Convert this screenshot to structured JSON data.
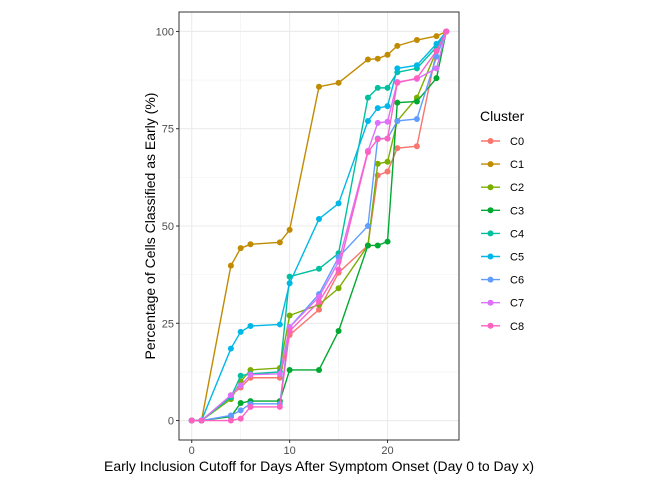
{
  "chart_data": {
    "type": "line",
    "title": "",
    "xlabel": "Early Inclusion Cutoff for Days After Symptom Onset (Day 0 to Day x)",
    "ylabel": "Percentage of Cells Classified as Early (%)",
    "xlim": [
      -1.3,
      27.3
    ],
    "ylim": [
      -5,
      105
    ],
    "xticks": [
      0,
      10,
      20
    ],
    "yticks": [
      0,
      25,
      50,
      75,
      100
    ],
    "grid": true,
    "legend": {
      "title": "Cluster",
      "position": "right"
    },
    "series": [
      {
        "name": "C0",
        "color": "#F8766D",
        "points": [
          [
            0,
            0
          ],
          [
            1,
            0
          ],
          [
            4,
            6.5
          ],
          [
            5,
            8.5
          ],
          [
            6,
            11
          ],
          [
            9,
            11
          ],
          [
            10,
            22
          ],
          [
            13,
            28.5
          ],
          [
            15,
            38
          ],
          [
            18,
            45
          ],
          [
            19,
            63
          ],
          [
            20,
            64
          ],
          [
            21,
            70
          ],
          [
            23,
            70.5
          ],
          [
            25,
            95
          ],
          [
            26,
            100
          ]
        ]
      },
      {
        "name": "C1",
        "color": "#C08B00",
        "points": [
          [
            0,
            0
          ],
          [
            1,
            0
          ],
          [
            4,
            39.8
          ],
          [
            5,
            44.3
          ],
          [
            6,
            45.3
          ],
          [
            9,
            45.8
          ],
          [
            10,
            49
          ],
          [
            13,
            85.8
          ],
          [
            15,
            86.8
          ],
          [
            18,
            92.8
          ],
          [
            19,
            93
          ],
          [
            20,
            94
          ],
          [
            21,
            96.3
          ],
          [
            23,
            97.8
          ],
          [
            25,
            98.8
          ],
          [
            26,
            100
          ]
        ]
      },
      {
        "name": "C2",
        "color": "#7CAE00",
        "points": [
          [
            0,
            0
          ],
          [
            1,
            0
          ],
          [
            4,
            5.5
          ],
          [
            5,
            10
          ],
          [
            6,
            13
          ],
          [
            9,
            13.5
          ],
          [
            10,
            27
          ],
          [
            13,
            29.8
          ],
          [
            15,
            34
          ],
          [
            18,
            45
          ],
          [
            19,
            66
          ],
          [
            20,
            66.5
          ],
          [
            21,
            77
          ],
          [
            23,
            83
          ],
          [
            25,
            95
          ],
          [
            26,
            100
          ]
        ]
      },
      {
        "name": "C3",
        "color": "#00A932",
        "points": [
          [
            0,
            0
          ],
          [
            1,
            0
          ],
          [
            4,
            1
          ],
          [
            5,
            4.5
          ],
          [
            6,
            5
          ],
          [
            9,
            5
          ],
          [
            10,
            13
          ],
          [
            13,
            13
          ],
          [
            15,
            23
          ],
          [
            18,
            45
          ],
          [
            19,
            45
          ],
          [
            20,
            46
          ],
          [
            21,
            81.7
          ],
          [
            23,
            82
          ],
          [
            25,
            88
          ],
          [
            26,
            100
          ]
        ]
      },
      {
        "name": "C4",
        "color": "#00C19F",
        "points": [
          [
            0,
            0
          ],
          [
            1,
            0
          ],
          [
            4,
            6
          ],
          [
            5,
            11.5
          ],
          [
            6,
            12
          ],
          [
            9,
            12.5
          ],
          [
            10,
            37
          ],
          [
            13,
            39
          ],
          [
            15,
            43
          ],
          [
            18,
            83
          ],
          [
            19,
            85.5
          ],
          [
            20,
            85.5
          ],
          [
            21,
            89.5
          ],
          [
            23,
            90.5
          ],
          [
            25,
            96
          ],
          [
            26,
            100
          ]
        ]
      },
      {
        "name": "C5",
        "color": "#00B8E7",
        "points": [
          [
            0,
            0
          ],
          [
            1,
            0
          ],
          [
            4,
            18.5
          ],
          [
            5,
            22.8
          ],
          [
            6,
            24.3
          ],
          [
            9,
            24.7
          ],
          [
            10,
            35.3
          ],
          [
            13,
            51.8
          ],
          [
            15,
            55.8
          ],
          [
            18,
            77
          ],
          [
            19,
            80.3
          ],
          [
            20,
            80.8
          ],
          [
            21,
            90.5
          ],
          [
            23,
            91.3
          ],
          [
            25,
            96.8
          ],
          [
            26,
            100
          ]
        ]
      },
      {
        "name": "C6",
        "color": "#619CFF",
        "points": [
          [
            0,
            0
          ],
          [
            1,
            0
          ],
          [
            4,
            1.3
          ],
          [
            5,
            2.6
          ],
          [
            6,
            4.3
          ],
          [
            9,
            4.3
          ],
          [
            10,
            24
          ],
          [
            13,
            32.5
          ],
          [
            15,
            42
          ],
          [
            18,
            50
          ],
          [
            19,
            72.5
          ],
          [
            20,
            72.5
          ],
          [
            21,
            77
          ],
          [
            23,
            77.5
          ],
          [
            25,
            93.5
          ],
          [
            26,
            100
          ]
        ]
      },
      {
        "name": "C7",
        "color": "#DB72FB",
        "points": [
          [
            0,
            0
          ],
          [
            1,
            0
          ],
          [
            4,
            6.5
          ],
          [
            5,
            9
          ],
          [
            6,
            11.8
          ],
          [
            9,
            12
          ],
          [
            10,
            24
          ],
          [
            13,
            31.8
          ],
          [
            15,
            40.8
          ],
          [
            18,
            69.3
          ],
          [
            19,
            76.5
          ],
          [
            20,
            76.8
          ],
          [
            21,
            87
          ],
          [
            23,
            87.8
          ],
          [
            25,
            90.5
          ],
          [
            26,
            100
          ]
        ]
      },
      {
        "name": "C8",
        "color": "#FF61C3",
        "points": [
          [
            0,
            0
          ],
          [
            1,
            0
          ],
          [
            4,
            0
          ],
          [
            5,
            0.5
          ],
          [
            6,
            3.5
          ],
          [
            9,
            3.5
          ],
          [
            10,
            23
          ],
          [
            13,
            30.5
          ],
          [
            15,
            38.8
          ],
          [
            18,
            69
          ],
          [
            19,
            72.3
          ],
          [
            20,
            72.5
          ],
          [
            21,
            86.8
          ],
          [
            23,
            88
          ],
          [
            25,
            95
          ],
          [
            26,
            100
          ]
        ]
      }
    ]
  }
}
